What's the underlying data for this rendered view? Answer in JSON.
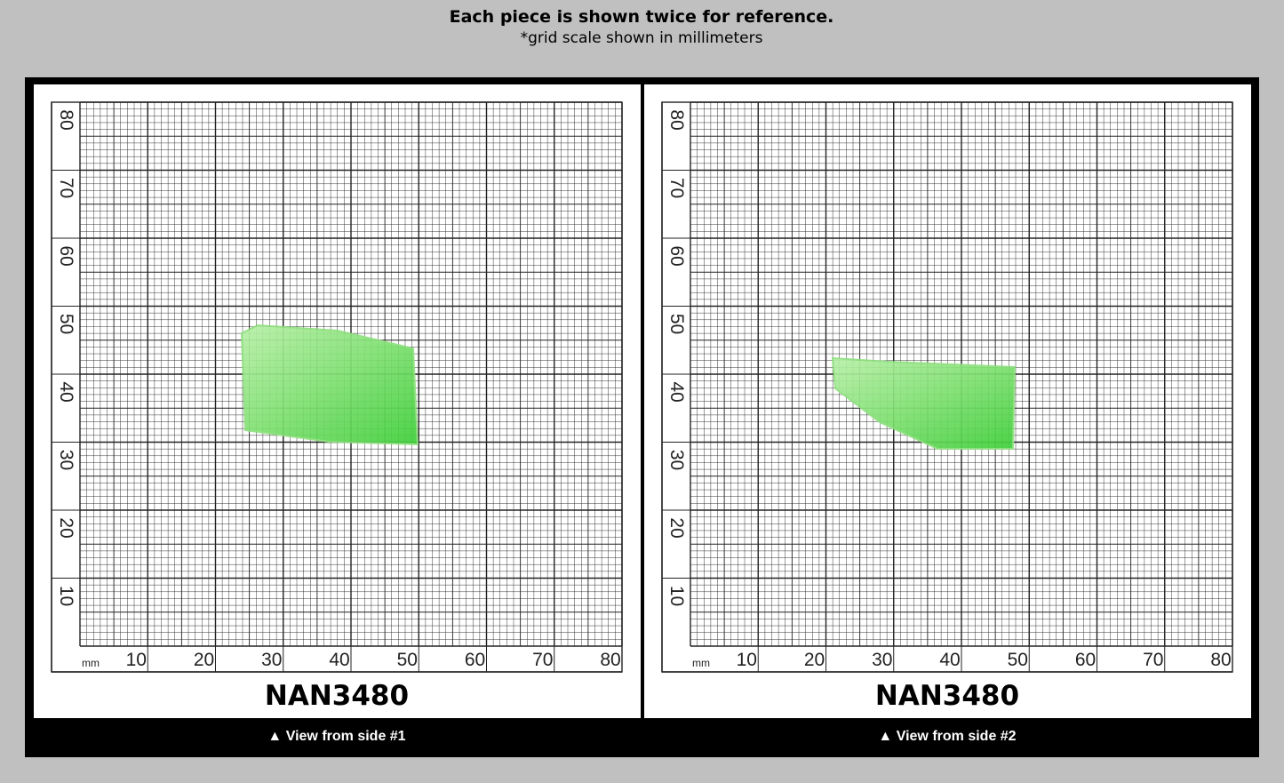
{
  "header": {
    "title": "Each piece is shown twice for reference.",
    "subtitle": "*grid scale shown in millimeters"
  },
  "panels": [
    {
      "name": "NAN3480",
      "caption": "▲ View from side #1",
      "unit": "mm",
      "xticks": [
        10,
        20,
        30,
        40,
        50,
        60,
        70,
        80
      ],
      "yticks": [
        10,
        20,
        30,
        40,
        50,
        60,
        70,
        80
      ]
    },
    {
      "name": "NAN3480",
      "caption": "▲ View from side #2",
      "unit": "mm",
      "xticks": [
        10,
        20,
        30,
        40,
        50,
        60,
        70,
        80
      ],
      "yticks": [
        10,
        20,
        30,
        40,
        50,
        60,
        70,
        80
      ]
    }
  ]
}
